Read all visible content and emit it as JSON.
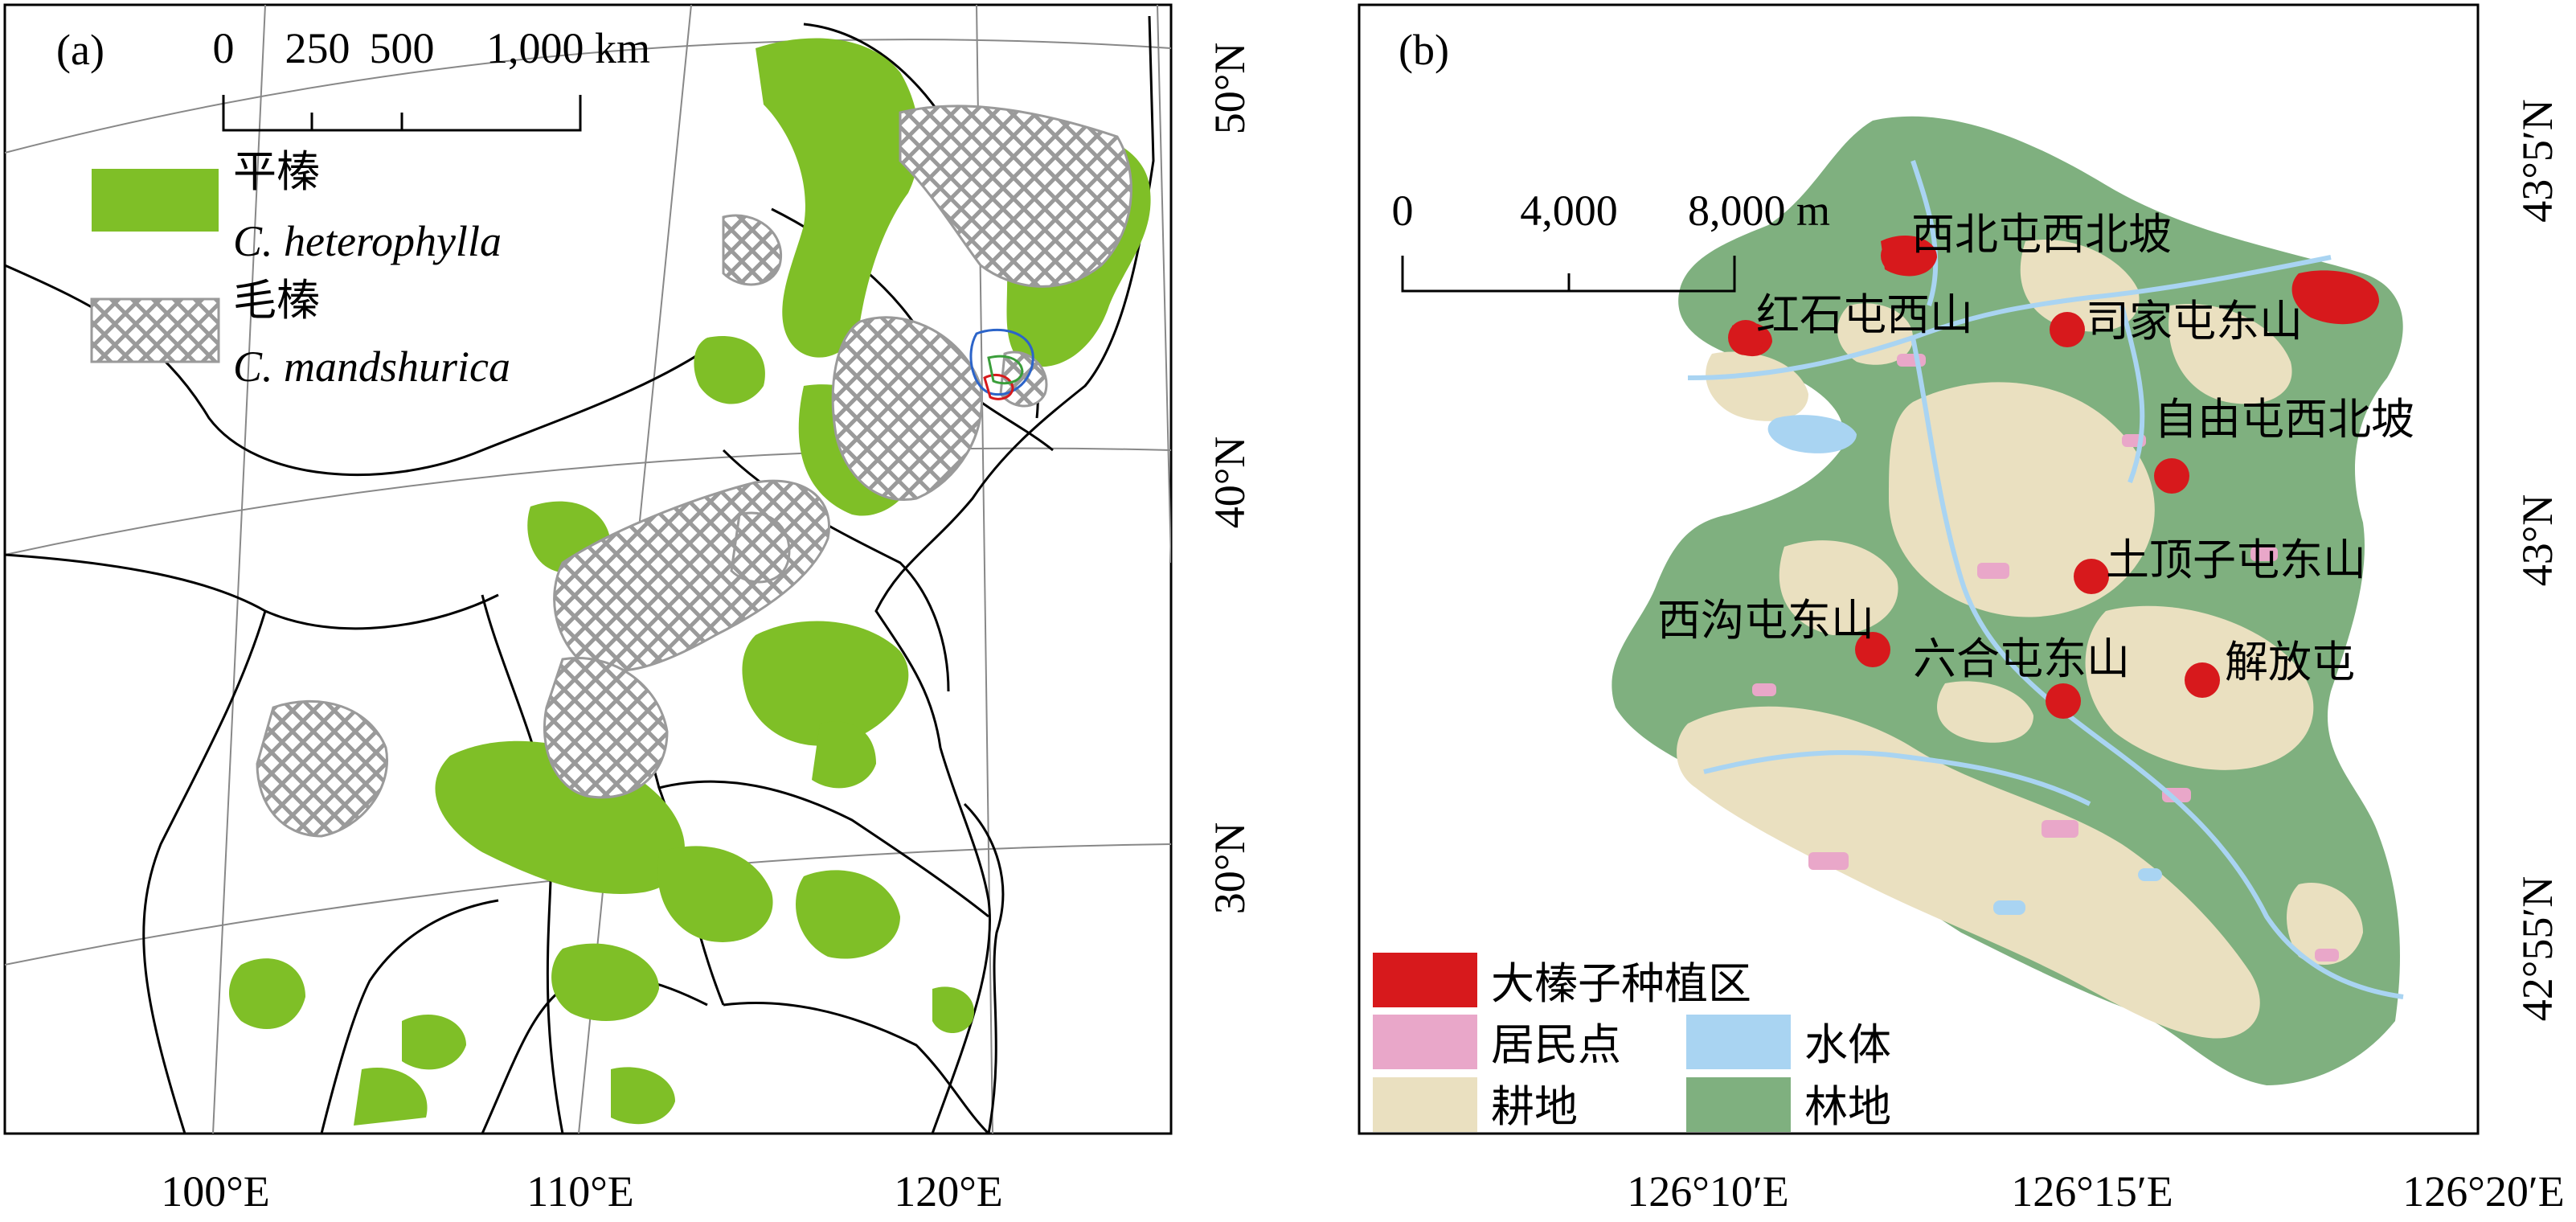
{
  "panel_a": {
    "label": "(a)",
    "scale_bar": {
      "ticks": [
        "0",
        "250",
        "500",
        "1,000 km"
      ]
    },
    "legend": [
      {
        "cn": "平榛",
        "latin": "C. heterophylla",
        "color": "#7fbf27"
      },
      {
        "cn": "毛榛",
        "latin": "C. mandshurica",
        "color": "#9a9a9a"
      }
    ],
    "lon_labels": [
      "100°E",
      "110°E",
      "120°E"
    ],
    "lat_labels": [
      "50°N",
      "40°N",
      "30°N"
    ]
  },
  "panel_b": {
    "label": "(b)",
    "scale_bar": {
      "ticks": [
        "0",
        "4,000",
        "8,000 m"
      ]
    },
    "sites": [
      {
        "name": "西北屯西北坡"
      },
      {
        "name": "红石屯西山"
      },
      {
        "name": "司家屯东山"
      },
      {
        "name": "自由屯西北坡"
      },
      {
        "name": "土顶子屯东山"
      },
      {
        "name": "西沟屯东山"
      },
      {
        "name": "六合屯东山"
      },
      {
        "name": "解放屯"
      }
    ],
    "legend": [
      {
        "label": "大榛子种植区",
        "color": "#d7191c"
      },
      {
        "label": "居民点",
        "color": "#e9a7c9"
      },
      {
        "label": "水体",
        "color": "#a9d4f2"
      },
      {
        "label": "耕地",
        "color": "#eae0c0"
      },
      {
        "label": "林地",
        "color": "#7fb07f"
      }
    ],
    "lon_labels": [
      "126°10′E",
      "126°15′E",
      "126°20′E"
    ],
    "lat_labels": [
      "43°5′N",
      "43°N",
      "42°55′N"
    ]
  },
  "colors": {
    "hazel_flat": "#7fbf27",
    "hazel_hairy": "#9a9a9a",
    "plantation": "#d7191c",
    "residential": "#e9a7c9",
    "water": "#a9d4f2",
    "cropland": "#eae0c0",
    "forest": "#7fb07f"
  }
}
